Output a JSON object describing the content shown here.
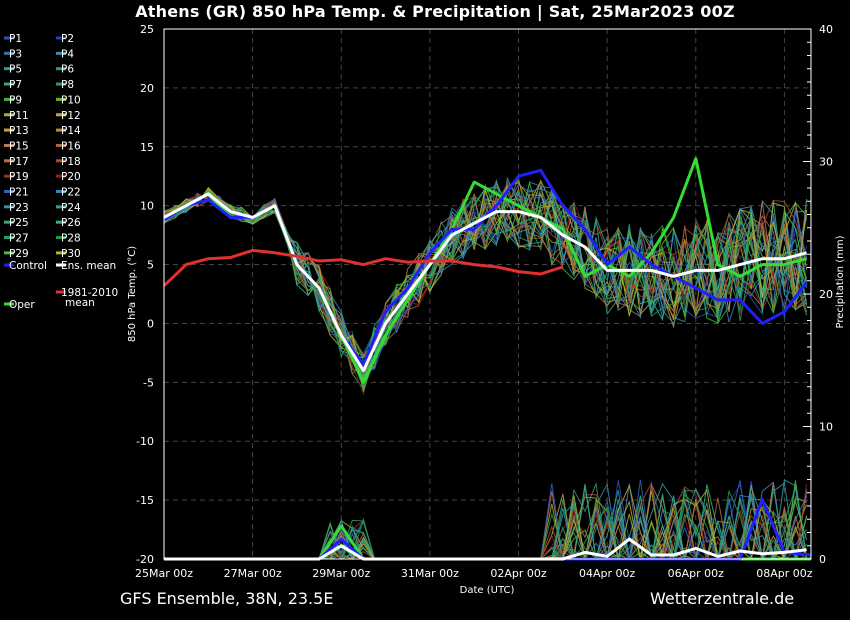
{
  "title": "Athens  (GR)  850 hPa Temp. & Precipitation | Sat, 25Mar2023 00Z",
  "footer_left": "GFS Ensemble, 38N, 23.5E",
  "footer_right": "Wetterzentrale.de",
  "chart_data": {
    "type": "line",
    "ylabel": "850 hPa Temp. (°C)",
    "y2label": "Precipitation (mm)",
    "xlabel": "Date (UTC)",
    "ylim": [
      -20,
      25
    ],
    "y2lim": [
      0,
      40
    ],
    "yticks": [
      25,
      20,
      15,
      10,
      5,
      0,
      -5,
      -10,
      -15,
      -20
    ],
    "y2ticks": [
      40,
      30,
      20,
      10,
      0
    ],
    "x_ticks": [
      "25Mar 00z",
      "27Mar 00z",
      "29Mar 00z",
      "31Mar 00z",
      "02Apr 00z",
      "04Apr 00z",
      "06Apr 00z",
      "08Apr 00z"
    ],
    "x_range_days": [
      0,
      14.6
    ],
    "grid": true,
    "legend": [
      {
        "label": "P1",
        "color": "#2a52be"
      },
      {
        "label": "P2",
        "color": "#1f3fbf"
      },
      {
        "label": "P3",
        "color": "#3a6fb0"
      },
      {
        "label": "P4",
        "color": "#3f8ab0"
      },
      {
        "label": "P5",
        "color": "#2f9aa0"
      },
      {
        "label": "P6",
        "color": "#2aa070"
      },
      {
        "label": "P7",
        "color": "#30a888"
      },
      {
        "label": "P8",
        "color": "#2f9a60"
      },
      {
        "label": "P9",
        "color": "#40b040"
      },
      {
        "label": "P10",
        "color": "#70b020"
      },
      {
        "label": "P11",
        "color": "#a8b030"
      },
      {
        "label": "P12",
        "color": "#c0a840"
      },
      {
        "label": "P13",
        "color": "#c8a030"
      },
      {
        "label": "P14",
        "color": "#c08a30"
      },
      {
        "label": "P15",
        "color": "#c07850"
      },
      {
        "label": "P16",
        "color": "#b06840"
      },
      {
        "label": "P17",
        "color": "#c06a40"
      },
      {
        "label": "P18",
        "color": "#a84a30"
      },
      {
        "label": "P19",
        "color": "#a03020"
      },
      {
        "label": "P20",
        "color": "#902020"
      },
      {
        "label": "P21",
        "color": "#3060c0"
      },
      {
        "label": "P22",
        "color": "#3a80c8"
      },
      {
        "label": "P23",
        "color": "#3a90b0"
      },
      {
        "label": "P24",
        "color": "#30a0a0"
      },
      {
        "label": "P25",
        "color": "#30a878"
      },
      {
        "label": "P26",
        "color": "#30b090"
      },
      {
        "label": "P27",
        "color": "#28a068"
      },
      {
        "label": "P28",
        "color": "#2a9a48"
      },
      {
        "label": "P29",
        "color": "#58b838"
      },
      {
        "label": "P30",
        "color": "#b8b028"
      },
      {
        "label": "Control",
        "color": "#2020ff"
      },
      {
        "label": "Ens. mean",
        "color": "#ffffff"
      },
      {
        "label": "1981-2010",
        "label2": "mean",
        "color": "#e03030"
      },
      {
        "label": "Oper",
        "color": "#33dd33"
      }
    ],
    "series": [
      {
        "name": "Oper",
        "color": "#33dd33",
        "axis": "temp",
        "x": [
          0,
          0.5,
          1,
          1.5,
          2,
          2.5,
          3,
          3.5,
          4,
          4.5,
          5,
          5.5,
          6,
          6.5,
          7,
          7.5,
          8,
          8.5,
          9,
          9.5,
          10,
          10.5,
          11,
          11.5,
          12,
          12.5,
          13,
          13.5,
          14,
          14.5
        ],
        "y": [
          9,
          10,
          11,
          9,
          9,
          10,
          5,
          3,
          -1,
          -5,
          -1,
          2,
          5,
          8,
          12,
          11,
          10,
          9,
          8,
          4,
          5,
          4,
          6,
          9,
          14,
          5,
          4,
          5,
          5,
          5.5
        ]
      },
      {
        "name": "Control",
        "color": "#2020ff",
        "axis": "temp",
        "x": [
          0,
          0.5,
          1,
          1.5,
          2,
          2.5,
          3,
          3.5,
          4,
          4.5,
          5,
          5.5,
          6,
          6.5,
          7,
          7.5,
          8,
          8.5,
          9,
          9.5,
          10,
          10.5,
          11,
          11.5,
          12,
          12.5,
          13,
          13.5,
          14,
          14.5
        ],
        "y": [
          8.8,
          10,
          10.5,
          9,
          9,
          10,
          5,
          3,
          -1,
          -3.5,
          1,
          3,
          6,
          8,
          8,
          10,
          12.5,
          13,
          10,
          8,
          5,
          6.5,
          5,
          4,
          3,
          2,
          2,
          0,
          1,
          3.5
        ]
      },
      {
        "name": "Ens. mean",
        "color": "#ffffff",
        "axis": "temp",
        "x": [
          0,
          0.5,
          1,
          1.5,
          2,
          2.5,
          3,
          3.5,
          4,
          4.5,
          5,
          5.5,
          6,
          6.5,
          7,
          7.5,
          8,
          8.5,
          9,
          9.5,
          10,
          10.5,
          11,
          11.5,
          12,
          12.5,
          13,
          13.5,
          14,
          14.5
        ],
        "y": [
          9,
          10,
          11,
          9.5,
          9,
          10,
          5,
          3,
          -1,
          -4,
          0,
          2.5,
          5,
          7.5,
          8.5,
          9.5,
          9.5,
          9,
          7.5,
          6.5,
          4.5,
          4.5,
          4.5,
          4,
          4.5,
          4.5,
          5,
          5.5,
          5.5,
          6
        ]
      },
      {
        "name": "1981-2010 mean",
        "color": "#e03030",
        "axis": "temp",
        "x": [
          0,
          0.5,
          1,
          1.5,
          2,
          2.5,
          3,
          3.5,
          4,
          4.5,
          5,
          5.5,
          6,
          6.5,
          7,
          7.5,
          8,
          8.5,
          9
        ],
        "y": [
          3.2,
          5,
          5.5,
          5.6,
          6.2,
          6,
          5.7,
          5.3,
          5.4,
          5,
          5.5,
          5.2,
          5.3,
          5.3,
          5,
          4.8,
          4.4,
          4.2,
          4.8
        ]
      },
      {
        "name": "Oper",
        "color": "#33dd33",
        "axis": "precip",
        "x": [
          0,
          1,
          2,
          3,
          3.5,
          4,
          4.5,
          5,
          6,
          7,
          8,
          9,
          10,
          11,
          12,
          13,
          14,
          14.6
        ],
        "y": [
          0,
          0,
          0,
          0,
          0,
          2.5,
          0,
          0,
          0,
          0,
          0,
          0,
          0,
          0,
          0,
          0,
          0,
          0
        ]
      },
      {
        "name": "Control",
        "color": "#2020ff",
        "axis": "precip",
        "x": [
          0,
          1,
          2,
          3,
          3.5,
          4,
          4.5,
          5,
          6,
          7,
          8,
          9,
          10,
          11,
          12,
          13,
          13.5,
          14,
          14.6
        ],
        "y": [
          0,
          0,
          0,
          0,
          0,
          1.5,
          0,
          0,
          0,
          0,
          0,
          0,
          0,
          0,
          0,
          0,
          4.5,
          0.5,
          0.3
        ]
      },
      {
        "name": "Ens. mean",
        "color": "#ffffff",
        "axis": "precip",
        "x": [
          0,
          1,
          2,
          3,
          3.5,
          4,
          4.5,
          5,
          6,
          7,
          8,
          9,
          9.5,
          10,
          10.5,
          11,
          11.5,
          12,
          12.5,
          13,
          13.5,
          14,
          14.5
        ],
        "y": [
          0,
          0,
          0,
          0,
          0,
          1,
          0,
          0,
          0,
          0,
          0,
          0,
          0.5,
          0.2,
          1.5,
          0.3,
          0.3,
          0.8,
          0.2,
          0.6,
          0.4,
          0.5,
          0.7
        ]
      }
    ]
  }
}
